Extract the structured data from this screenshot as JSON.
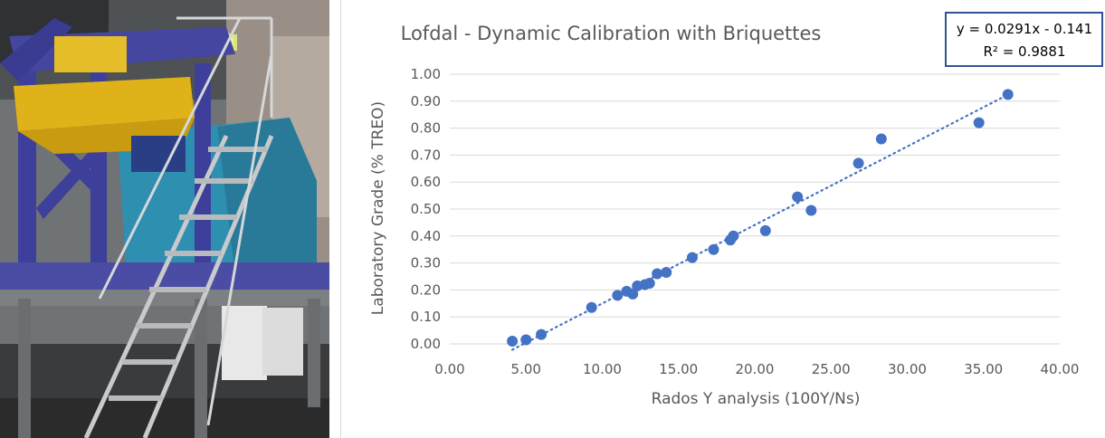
{
  "chart_data": {
    "type": "scatter",
    "title": "Lofdal - Dynamic Calibration with Briquettes",
    "xlabel": "Rados Y analysis (100Y/Ns)",
    "ylabel": "Laboratory Grade (% TREO)",
    "xlim": [
      0,
      40
    ],
    "ylim": [
      0,
      1
    ],
    "x_ticks": [
      "0.00",
      "5.00",
      "10.00",
      "15.00",
      "20.00",
      "25.00",
      "30.00",
      "35.00",
      "40.00"
    ],
    "y_ticks": [
      "0.00",
      "0.10",
      "0.20",
      "0.30",
      "0.40",
      "0.50",
      "0.60",
      "0.70",
      "0.80",
      "0.90",
      "1.00"
    ],
    "grid": "horizontal",
    "marker_color": "#4472C4",
    "trendline": {
      "type": "linear",
      "style": "dotted",
      "slope": 0.0291,
      "intercept": -0.141,
      "equation": "y = 0.0291x - 0.141",
      "r_squared": "R² = 0.9881"
    },
    "points": [
      {
        "x": 4.1,
        "y": 0.01
      },
      {
        "x": 5.0,
        "y": 0.015
      },
      {
        "x": 6.0,
        "y": 0.035
      },
      {
        "x": 9.3,
        "y": 0.135
      },
      {
        "x": 11.0,
        "y": 0.18
      },
      {
        "x": 11.6,
        "y": 0.195
      },
      {
        "x": 12.0,
        "y": 0.185
      },
      {
        "x": 12.3,
        "y": 0.215
      },
      {
        "x": 12.8,
        "y": 0.22
      },
      {
        "x": 13.1,
        "y": 0.225
      },
      {
        "x": 13.6,
        "y": 0.26
      },
      {
        "x": 14.2,
        "y": 0.265
      },
      {
        "x": 15.9,
        "y": 0.32
      },
      {
        "x": 17.3,
        "y": 0.35
      },
      {
        "x": 18.4,
        "y": 0.385
      },
      {
        "x": 18.6,
        "y": 0.4
      },
      {
        "x": 20.7,
        "y": 0.42
      },
      {
        "x": 22.8,
        "y": 0.545
      },
      {
        "x": 23.7,
        "y": 0.495
      },
      {
        "x": 26.8,
        "y": 0.67
      },
      {
        "x": 28.3,
        "y": 0.76
      },
      {
        "x": 34.7,
        "y": 0.82
      },
      {
        "x": 36.6,
        "y": 0.925
      }
    ]
  },
  "photo": {
    "icon": "equipment-photo",
    "colors": {
      "frame_blue": "#3d3f9a",
      "machine_teal": "#2f8fb0",
      "hopper_yellow": "#e0b21a",
      "wall_gray": "#8e9092",
      "floor_gray": "#5f6162"
    }
  }
}
